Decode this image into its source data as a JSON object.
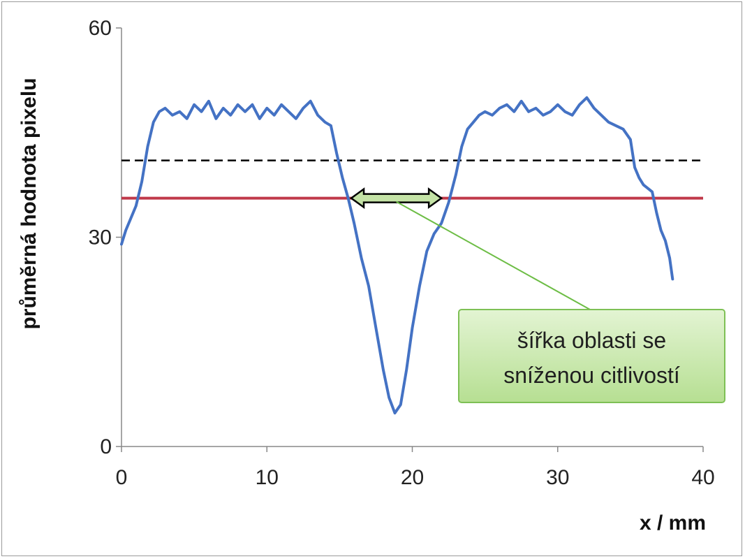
{
  "chart_data": {
    "type": "line",
    "xlabel": "x / mm",
    "ylabel": "průměrná hodnota pixelu",
    "xlim": [
      0,
      40
    ],
    "ylim": [
      0,
      60
    ],
    "x_ticks": [
      "0",
      "10",
      "20",
      "30",
      "40"
    ],
    "y_ticks": [
      "0",
      "30",
      "60"
    ],
    "grid": false,
    "legend": "none",
    "series": [
      {
        "color": "#4472c4",
        "x": [
          0,
          0.3,
          0.6,
          1.0,
          1.4,
          1.8,
          2.2,
          2.6,
          3.0,
          3.5,
          4.0,
          4.5,
          5.0,
          5.5,
          6.0,
          6.5,
          7.0,
          7.5,
          8.0,
          8.5,
          9.0,
          9.5,
          10.0,
          10.5,
          11.0,
          11.5,
          12.0,
          12.5,
          13.0,
          13.5,
          14.0,
          14.4,
          14.8,
          15.2,
          15.6,
          16.0,
          16.5,
          17.0,
          17.5,
          18.0,
          18.4,
          18.8,
          19.2,
          19.6,
          20.0,
          20.5,
          21.0,
          21.5,
          22.0,
          22.5,
          23.0,
          23.4,
          23.8,
          24.2,
          24.6,
          25.0,
          25.5,
          26.0,
          26.5,
          27.0,
          27.5,
          28.0,
          28.5,
          29.0,
          29.5,
          30.0,
          30.5,
          31.0,
          31.5,
          32.0,
          32.5,
          33.0,
          33.5,
          34.0,
          34.5,
          35.0,
          35.3,
          35.6,
          35.9,
          36.2,
          36.5,
          36.8,
          37.1,
          37.4,
          37.7,
          37.9
        ],
        "y": [
          29.0,
          31.0,
          32.5,
          34.5,
          38.0,
          43.0,
          46.5,
          48.0,
          48.5,
          47.5,
          48.0,
          47.0,
          49.0,
          48.0,
          49.5,
          47.0,
          48.5,
          47.5,
          49.0,
          48.0,
          49.0,
          47.0,
          48.5,
          47.5,
          49.0,
          48.0,
          47.0,
          48.5,
          49.5,
          47.5,
          46.5,
          46.0,
          42.0,
          38.5,
          35.5,
          32.0,
          27.0,
          23.0,
          17.0,
          11.0,
          7.0,
          4.8,
          6.0,
          11.0,
          17.0,
          23.0,
          28.0,
          30.5,
          32.0,
          35.0,
          39.0,
          43.0,
          45.5,
          46.5,
          47.5,
          48.0,
          47.5,
          48.5,
          49.0,
          48.0,
          49.5,
          48.0,
          48.5,
          47.5,
          48.0,
          49.0,
          48.0,
          47.5,
          49.0,
          50.0,
          48.5,
          47.5,
          46.5,
          46.0,
          45.5,
          44.0,
          40.0,
          38.5,
          37.5,
          37.0,
          36.5,
          33.5,
          31.0,
          29.5,
          27.0,
          24.0
        ]
      }
    ],
    "reference_lines": [
      {
        "style": "dashed",
        "color": "#000000",
        "y": 41.0
      },
      {
        "style": "solid",
        "color": "#c0394a",
        "y": 35.6
      }
    ],
    "width_arrow": {
      "x_start": 15.8,
      "x_end": 22.0,
      "y": 35.6,
      "color": "#000000",
      "fill": "#c4e3a6"
    },
    "annotation": {
      "lines": [
        "šířka oblasti se",
        "sníženou citlivostí"
      ],
      "box_fill": "#c6e7a8",
      "box_border": "#7ec055",
      "pointer_color": "#6dbd45",
      "target_x": 18.9,
      "target_y": 35.6
    }
  }
}
